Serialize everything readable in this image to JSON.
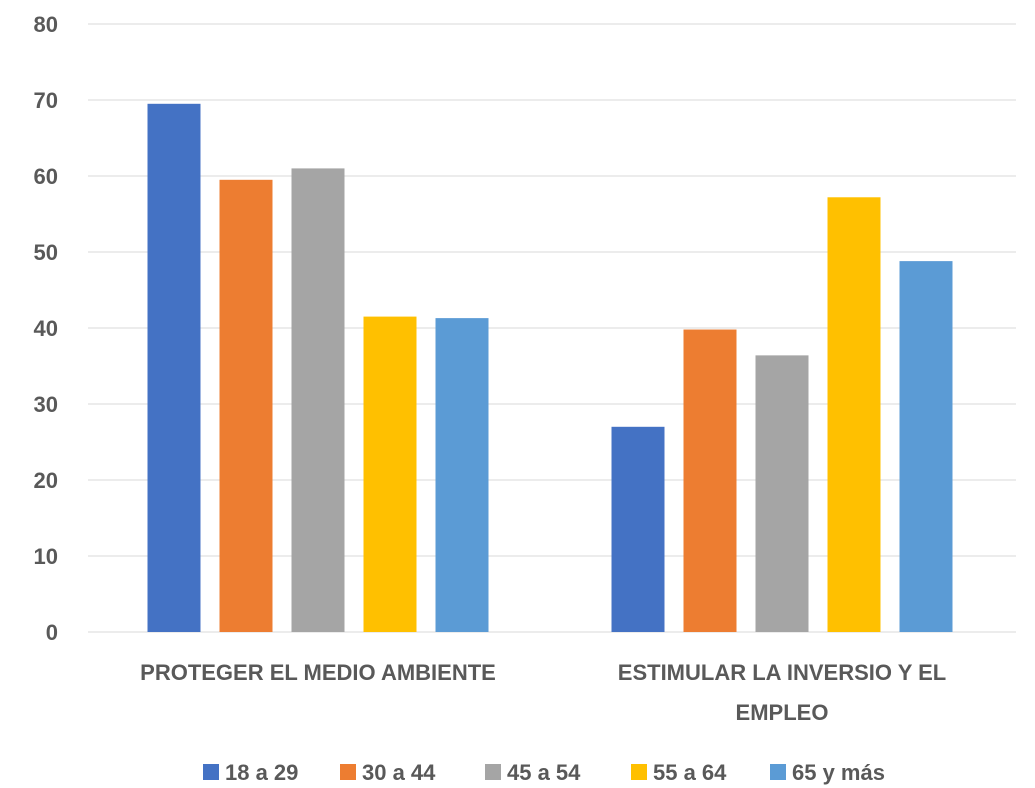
{
  "chart_data": {
    "type": "bar",
    "title": "",
    "xlabel": "",
    "ylabel": "",
    "ylim": [
      0,
      80
    ],
    "yticks": [
      0,
      10,
      20,
      30,
      40,
      50,
      60,
      70,
      80
    ],
    "grid": true,
    "legend_position": "bottom",
    "categories": [
      [
        "PROTEGER EL MEDIO AMBIENTE"
      ],
      [
        "ESTIMULAR LA INVERSIO Y EL",
        "EMPLEO"
      ]
    ],
    "series": [
      {
        "name": "18 a 29",
        "color": "#4472C4",
        "values": [
          69.5,
          27.0
        ]
      },
      {
        "name": "30 a 44",
        "color": "#ED7D31",
        "values": [
          59.5,
          39.8
        ]
      },
      {
        "name": "45 a 54",
        "color": "#A5A5A5",
        "values": [
          61.0,
          36.4
        ]
      },
      {
        "name": "55 a 64",
        "color": "#FFC000",
        "values": [
          41.5,
          57.2
        ]
      },
      {
        "name": "65 y más",
        "color": "#5B9BD5",
        "values": [
          41.3,
          48.8
        ]
      }
    ]
  }
}
